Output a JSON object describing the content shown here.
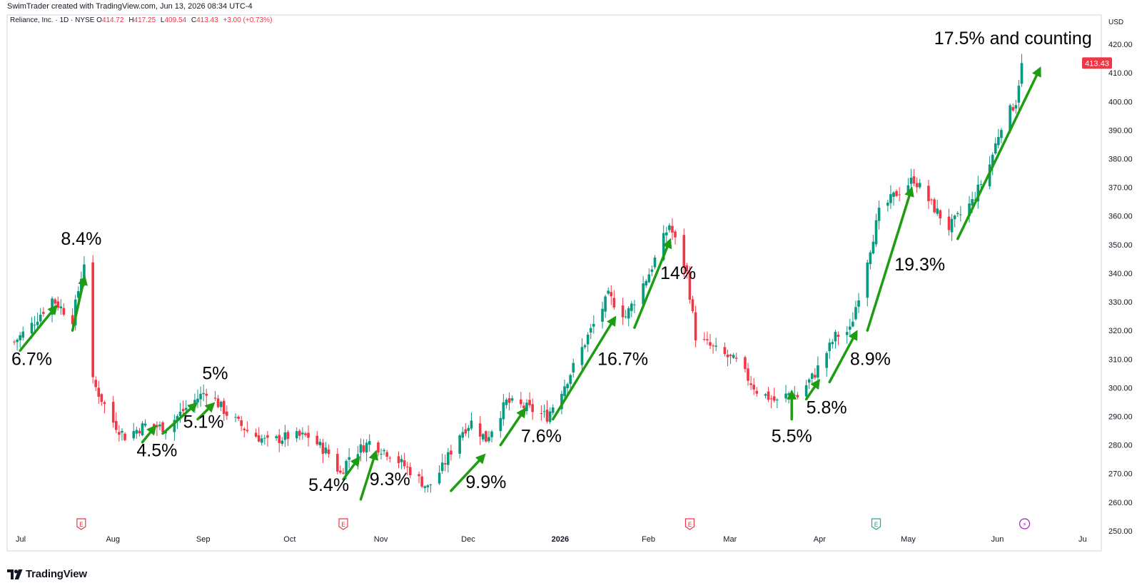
{
  "header": {
    "credit": "SwimTrader created with TradingView.com, Jun 13, 2026 08:34 UTC-4"
  },
  "legend": {
    "symbol": "Reliance, Inc. · 1D · NYSE",
    "o_label": "O",
    "o_value": "414.72",
    "h_label": "H",
    "h_value": "417.25",
    "l_label": "L",
    "l_value": "409.54",
    "c_label": "C",
    "c_value": "413.43",
    "change": "+3.00 (+0.73%)"
  },
  "brand": {
    "name": "TradingView"
  },
  "chart_data": {
    "type": "candlestick",
    "currency": "USD",
    "ylim": [
      245,
      425
    ],
    "y_ticks": [
      "250.00",
      "260.00",
      "270.00",
      "280.00",
      "290.00",
      "300.00",
      "310.00",
      "320.00",
      "330.00",
      "340.00",
      "350.00",
      "360.00",
      "370.00",
      "380.00",
      "390.00",
      "400.00",
      "410.00",
      "420.00"
    ],
    "y_tick_values": [
      250,
      260,
      270,
      280,
      290,
      300,
      310,
      320,
      330,
      340,
      350,
      360,
      370,
      380,
      390,
      400,
      410,
      420
    ],
    "last_price": "413.43",
    "last_price_value": 413.43,
    "colors": {
      "up": "#089981",
      "down": "#f23645",
      "arrow": "#1e9c12",
      "earnings": "#f23645",
      "earnings_future": "#22ab94",
      "dividend": "#9c27b0"
    },
    "x_labels": [
      {
        "label": "Jul",
        "date": "2025-07-01"
      },
      {
        "label": "Aug",
        "date": "2025-08-01"
      },
      {
        "label": "Sep",
        "date": "2025-09-01"
      },
      {
        "label": "Oct",
        "date": "2025-10-01"
      },
      {
        "label": "Nov",
        "date": "2025-11-01"
      },
      {
        "label": "Dec",
        "date": "2025-12-01"
      },
      {
        "label": "2026",
        "date": "2026-01-01",
        "bold": true
      },
      {
        "label": "Feb",
        "date": "2026-02-01"
      },
      {
        "label": "Mar",
        "date": "2026-03-01"
      },
      {
        "label": "Apr",
        "date": "2026-04-01"
      },
      {
        "label": "May",
        "date": "2026-05-01"
      },
      {
        "label": "Jun",
        "date": "2026-06-01"
      },
      {
        "label": "Ju",
        "date": "2026-07-01"
      }
    ],
    "anchors": [
      [
        "2025-07-01",
        316
      ],
      [
        "2025-07-07",
        322
      ],
      [
        "2025-07-14",
        331
      ],
      [
        "2025-07-21",
        324
      ],
      [
        "2025-07-25",
        344
      ],
      [
        "2025-07-28",
        302
      ],
      [
        "2025-08-04",
        288
      ],
      [
        "2025-08-08",
        283
      ],
      [
        "2025-08-15",
        287
      ],
      [
        "2025-08-22",
        286
      ],
      [
        "2025-08-29",
        293
      ],
      [
        "2025-09-05",
        299
      ],
      [
        "2025-09-12",
        291
      ],
      [
        "2025-09-19",
        285
      ],
      [
        "2025-09-26",
        281
      ],
      [
        "2025-10-03",
        283
      ],
      [
        "2025-10-10",
        283
      ],
      [
        "2025-10-17",
        277
      ],
      [
        "2025-10-21",
        270
      ],
      [
        "2025-10-24",
        276
      ],
      [
        "2025-10-31",
        281
      ],
      [
        "2025-11-07",
        277
      ],
      [
        "2025-11-14",
        271
      ],
      [
        "2025-11-20",
        265
      ],
      [
        "2025-11-25",
        272
      ],
      [
        "2025-12-01",
        284
      ],
      [
        "2025-12-05",
        288
      ],
      [
        "2025-12-10",
        282
      ],
      [
        "2025-12-17",
        295
      ],
      [
        "2025-12-24",
        293
      ],
      [
        "2025-12-31",
        290
      ],
      [
        "2026-01-07",
        303
      ],
      [
        "2026-01-14",
        318
      ],
      [
        "2026-01-21",
        332
      ],
      [
        "2026-01-27",
        325
      ],
      [
        "2026-02-04",
        340
      ],
      [
        "2026-02-11",
        357
      ],
      [
        "2026-02-17",
        340
      ],
      [
        "2026-02-20",
        318
      ],
      [
        "2026-02-27",
        313
      ],
      [
        "2026-03-06",
        309
      ],
      [
        "2026-03-13",
        299
      ],
      [
        "2026-03-20",
        295
      ],
      [
        "2026-03-24",
        298
      ],
      [
        "2026-03-27",
        297
      ],
      [
        "2026-04-02",
        305
      ],
      [
        "2026-04-09",
        318
      ],
      [
        "2026-04-14",
        320
      ],
      [
        "2026-04-20",
        345
      ],
      [
        "2026-04-24",
        361
      ],
      [
        "2026-04-30",
        368
      ],
      [
        "2026-05-06",
        373
      ],
      [
        "2026-05-12",
        364
      ],
      [
        "2026-05-18",
        356
      ],
      [
        "2026-05-26",
        365
      ],
      [
        "2026-06-01",
        378
      ],
      [
        "2026-06-05",
        392
      ],
      [
        "2026-06-10",
        400
      ],
      [
        "2026-06-12",
        413.43
      ]
    ],
    "events": [
      {
        "type": "earnings",
        "label": "E",
        "date": "2025-07-24"
      },
      {
        "type": "earnings",
        "label": "E",
        "date": "2025-10-22"
      },
      {
        "type": "earnings",
        "label": "E",
        "date": "2026-02-18"
      },
      {
        "type": "earnings_future",
        "label": "E",
        "date": "2026-04-23"
      },
      {
        "type": "dividend",
        "label": "⚡",
        "date": "2026-06-13"
      }
    ],
    "annotations": [
      {
        "text": "6.7%",
        "from": [
          "2025-07-03",
          313
        ],
        "to": [
          "2025-07-15",
          328
        ],
        "label_at": [
          "2025-07-07",
          308
        ]
      },
      {
        "text": "8.4%",
        "from": [
          "2025-07-21",
          320
        ],
        "to": [
          "2025-07-25",
          338
        ],
        "label_at": [
          "2025-07-24",
          350
        ]
      },
      {
        "text": "4.5%",
        "from": [
          "2025-08-14",
          281
        ],
        "to": [
          "2025-08-18",
          286
        ],
        "label_at": [
          "2025-08-19",
          276
        ]
      },
      {
        "text": "5.1%",
        "from": [
          "2025-08-21",
          284
        ],
        "to": [
          "2025-09-01",
          294
        ],
        "label_at": [
          "2025-09-04",
          286
        ]
      },
      {
        "text": "5%",
        "from": [
          "2025-09-02",
          289
        ],
        "to": [
          "2025-09-07",
          294
        ],
        "label_at": [
          "2025-09-08",
          303
        ]
      },
      {
        "text": "5.4%",
        "from": [
          "2025-10-22",
          268
        ],
        "to": [
          "2025-10-27",
          275
        ],
        "label_at": [
          "2025-10-17",
          264
        ]
      },
      {
        "text": "9.3%",
        "from": [
          "2025-10-28",
          261
        ],
        "to": [
          "2025-11-02",
          277
        ],
        "label_at": [
          "2025-11-07",
          266
        ]
      },
      {
        "text": "9.9%",
        "from": [
          "2025-11-28",
          264
        ],
        "to": [
          "2025-12-09",
          276
        ],
        "label_at": [
          "2025-12-10",
          265
        ]
      },
      {
        "text": "7.6%",
        "from": [
          "2025-12-15",
          280
        ],
        "to": [
          "2025-12-23",
          292
        ],
        "label_at": [
          "2025-12-29",
          281
        ]
      },
      {
        "text": "16.7%",
        "from": [
          "2026-01-02",
          289
        ],
        "to": [
          "2026-01-23",
          324
        ],
        "label_at": [
          "2026-01-26",
          308
        ]
      },
      {
        "text": "14%",
        "from": [
          "2026-01-30",
          321
        ],
        "to": [
          "2026-02-11",
          351
        ],
        "label_at": [
          "2026-02-14",
          338
        ]
      },
      {
        "text": "5.5%",
        "from": [
          "2026-03-25",
          289
        ],
        "to": [
          "2026-03-25",
          298
        ],
        "label_at": [
          "2026-03-25",
          281
        ]
      },
      {
        "text": "5.8%",
        "from": [
          "2026-03-30",
          296
        ],
        "to": [
          "2026-04-03",
          302
        ],
        "label_at": [
          "2026-04-06",
          291
        ]
      },
      {
        "text": "8.9%",
        "from": [
          "2026-04-07",
          302
        ],
        "to": [
          "2026-04-16",
          319
        ],
        "label_at": [
          "2026-04-21",
          308
        ]
      },
      {
        "text": "19.3%",
        "from": [
          "2026-04-20",
          320
        ],
        "to": [
          "2026-05-05",
          369
        ],
        "label_at": [
          "2026-05-08",
          341
        ]
      },
      {
        "text": "17.5% and counting",
        "from": [
          "2026-05-21",
          352
        ],
        "to": [
          "2026-06-18",
          411
        ],
        "label_at": [
          "2026-06-09",
          420
        ]
      }
    ]
  }
}
